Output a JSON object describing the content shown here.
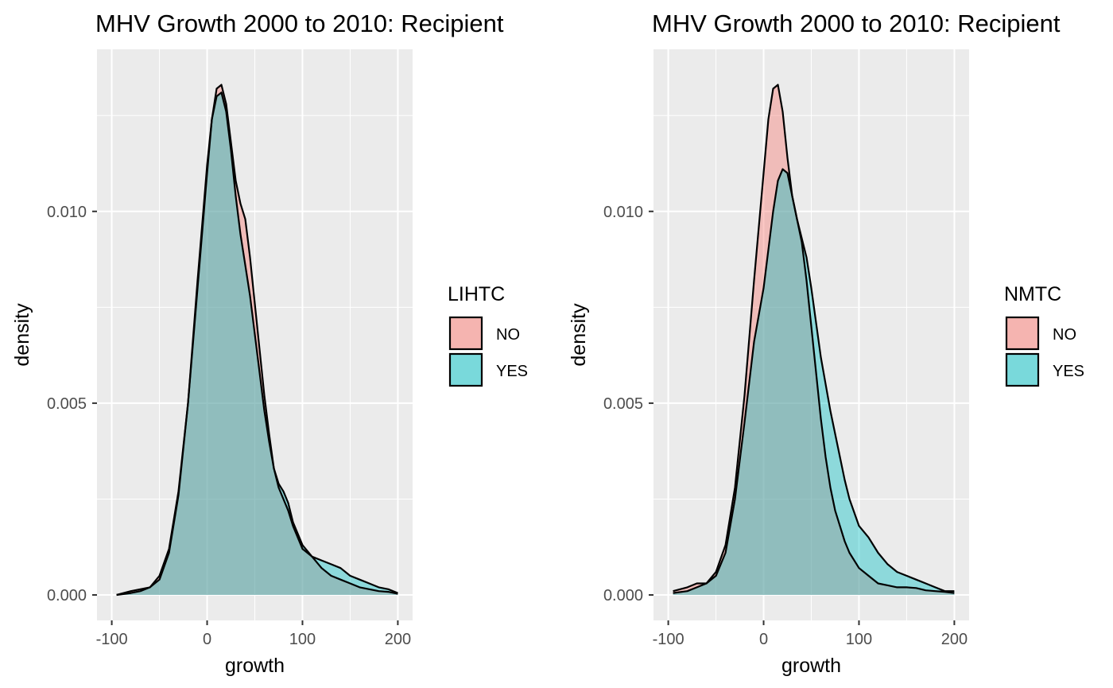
{
  "chart_data": [
    {
      "type": "area",
      "title": "MHV Growth 2000 to 2010: Recipient",
      "xlabel": "growth",
      "ylabel": "density",
      "xlim": [
        -100,
        200
      ],
      "ylim": [
        0,
        0.0135
      ],
      "x_ticks": [
        -100,
        0,
        100,
        200
      ],
      "x_tick_labels": [
        "-100",
        "0",
        "100",
        "200"
      ],
      "y_ticks": [
        0,
        0.005,
        0.01
      ],
      "y_tick_labels": [
        "0.000",
        "0.005",
        "0.010"
      ],
      "grid": true,
      "legend_position": "right",
      "legend_title": "LIHTC",
      "x": [
        -95,
        -80,
        -70,
        -60,
        -50,
        -40,
        -30,
        -20,
        -10,
        0,
        5,
        10,
        15,
        20,
        25,
        30,
        35,
        40,
        45,
        50,
        55,
        60,
        65,
        70,
        75,
        80,
        85,
        90,
        100,
        110,
        120,
        130,
        140,
        150,
        160,
        170,
        180,
        190,
        200
      ],
      "series": [
        {
          "name": "NO",
          "color": "#F8766D",
          "values": [
            0.0,
            0.0001,
            0.00015,
            0.0002,
            0.0005,
            0.0012,
            0.0027,
            0.005,
            0.008,
            0.011,
            0.0124,
            0.0132,
            0.0133,
            0.0128,
            0.0118,
            0.0108,
            0.0102,
            0.0098,
            0.0088,
            0.0076,
            0.0064,
            0.0052,
            0.0042,
            0.0033,
            0.0028,
            0.0025,
            0.0022,
            0.0018,
            0.0012,
            0.001,
            0.0007,
            0.0005,
            0.0004,
            0.0003,
            0.0002,
            0.00015,
            0.0001,
            8e-05,
            3e-05
          ]
        },
        {
          "name": "YES",
          "color": "#00BFC4",
          "values": [
            0.0,
            5e-05,
            0.0001,
            0.0002,
            0.0004,
            0.0011,
            0.0026,
            0.005,
            0.0082,
            0.0112,
            0.0124,
            0.013,
            0.0131,
            0.0126,
            0.0116,
            0.0104,
            0.0094,
            0.0086,
            0.0078,
            0.0068,
            0.0058,
            0.0048,
            0.004,
            0.0033,
            0.0029,
            0.0027,
            0.0024,
            0.0019,
            0.0013,
            0.001,
            0.0009,
            0.0008,
            0.0007,
            0.0005,
            0.0004,
            0.0003,
            0.0002,
            0.00015,
            5e-05
          ]
        }
      ]
    },
    {
      "type": "area",
      "title": "MHV Growth 2000 to 2010: Recipient",
      "xlabel": "growth",
      "ylabel": "density",
      "xlim": [
        -100,
        200
      ],
      "ylim": [
        0,
        0.0135
      ],
      "x_ticks": [
        -100,
        0,
        100,
        200
      ],
      "x_tick_labels": [
        "-100",
        "0",
        "100",
        "200"
      ],
      "y_ticks": [
        0,
        0.005,
        0.01
      ],
      "y_tick_labels": [
        "0.000",
        "0.005",
        "0.010"
      ],
      "grid": true,
      "legend_position": "right",
      "legend_title": "NMTC",
      "x": [
        -95,
        -80,
        -70,
        -60,
        -50,
        -40,
        -30,
        -20,
        -10,
        0,
        5,
        10,
        15,
        20,
        25,
        30,
        35,
        40,
        45,
        50,
        55,
        60,
        65,
        70,
        75,
        80,
        85,
        90,
        100,
        110,
        120,
        130,
        140,
        150,
        160,
        170,
        180,
        190,
        200
      ],
      "series": [
        {
          "name": "NO",
          "color": "#F8766D",
          "values": [
            0.0001,
            0.0002,
            0.0003,
            0.0003,
            0.0006,
            0.0013,
            0.0028,
            0.0052,
            0.0082,
            0.011,
            0.0124,
            0.0132,
            0.0133,
            0.0126,
            0.0114,
            0.0104,
            0.0098,
            0.0092,
            0.0082,
            0.007,
            0.0058,
            0.0046,
            0.0036,
            0.0028,
            0.0022,
            0.0018,
            0.0014,
            0.0011,
            0.0007,
            0.0005,
            0.0003,
            0.00025,
            0.0002,
            0.0002,
            0.00018,
            0.00012,
            0.0001,
            8e-05,
            5e-05
          ]
        },
        {
          "name": "YES",
          "color": "#00BFC4",
          "values": [
            5e-05,
            0.0001,
            0.0002,
            0.0003,
            0.0005,
            0.0011,
            0.0025,
            0.0045,
            0.0066,
            0.008,
            0.009,
            0.01,
            0.0108,
            0.0111,
            0.011,
            0.0104,
            0.0098,
            0.0093,
            0.0088,
            0.008,
            0.0071,
            0.0062,
            0.0055,
            0.0048,
            0.0042,
            0.0036,
            0.003,
            0.0025,
            0.0018,
            0.0015,
            0.0011,
            0.0008,
            0.0006,
            0.0005,
            0.0004,
            0.0003,
            0.0002,
            0.0001,
            0.0001
          ]
        }
      ]
    }
  ]
}
